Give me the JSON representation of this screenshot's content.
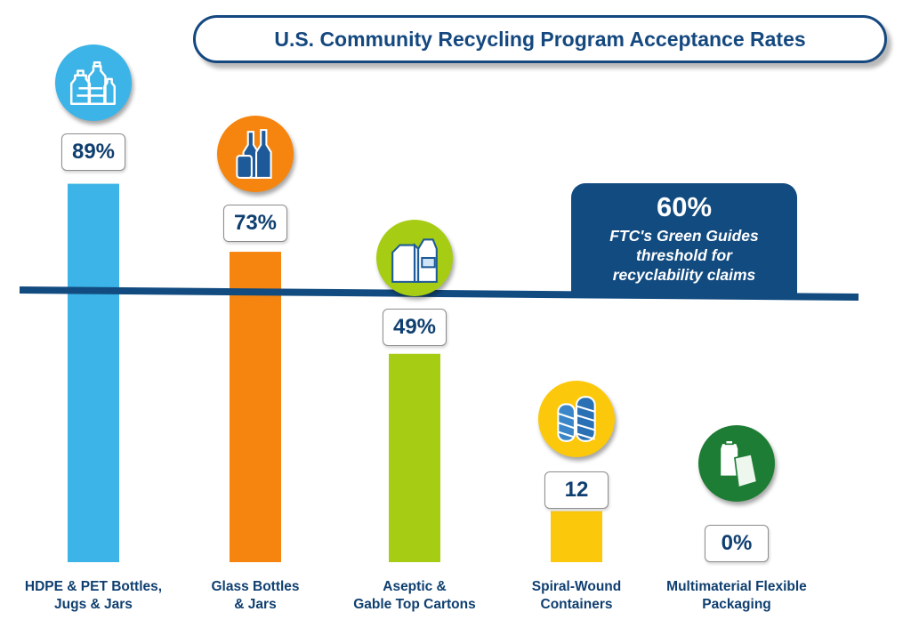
{
  "chart_data": {
    "type": "bar",
    "title": "U.S. Community Recycling Program Acceptance Rates",
    "xlabel": "",
    "ylabel": "",
    "ylim": [
      0,
      100
    ],
    "categories": [
      "HDPE & PET Bottles,\nJugs & Jars",
      "Glass Bottles\n& Jars",
      "Aseptic &\nGable Top Cartons",
      "Spiral-Wound\nContainers",
      "Multimaterial Flexible\nPackaging"
    ],
    "values": [
      89,
      73,
      49,
      12,
      0
    ],
    "data_labels": [
      "89%",
      "73%",
      "49%",
      "12",
      "0%"
    ],
    "bar_colors": [
      "#3cb4e7",
      "#f5850e",
      "#a6cd14",
      "#fcc80c",
      "#1e7d34"
    ],
    "icons": [
      "plastic-bottles-icon",
      "glass-bottles-icon",
      "cartons-icon",
      "spiral-cans-icon",
      "flexible-pouch-icon"
    ],
    "threshold": {
      "value": 60,
      "label": "60%",
      "caption": "FTC's Green Guides\nthreshold for\nrecyclability claims",
      "color": "#124b80"
    }
  }
}
